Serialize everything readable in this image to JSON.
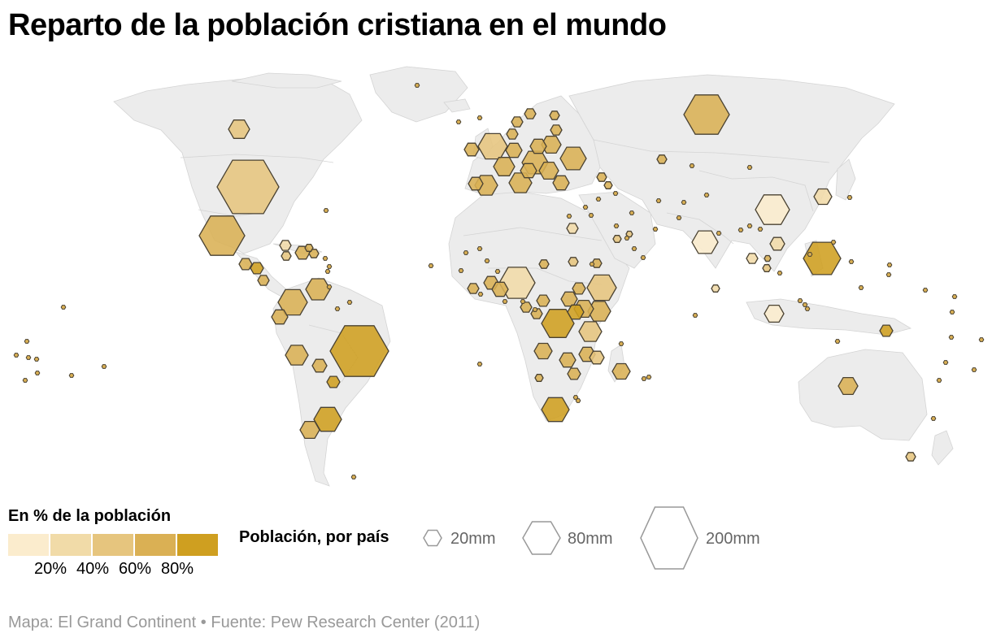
{
  "title": "Reparto de la población cristiana en el mundo",
  "legend_color": {
    "title": "En % de la población",
    "swatches": [
      "#fbeccd",
      "#f1dba8",
      "#e6c57e",
      "#dab054",
      "#cf9f20"
    ],
    "ticks": [
      "20%",
      "40%",
      "60%",
      "80%"
    ]
  },
  "legend_size": {
    "title": "Población, por país",
    "items": [
      {
        "label": "20mm",
        "value": 20
      },
      {
        "label": "80mm",
        "value": 80
      },
      {
        "label": "200mm",
        "value": 200
      }
    ]
  },
  "source": "Mapa: El Grand Continent • Fuente: Pew Research Center (2011)",
  "map": {
    "land_color": "#ececec",
    "border_color": "#d4d4d4",
    "hex_stroke": "#4a4232"
  }
}
